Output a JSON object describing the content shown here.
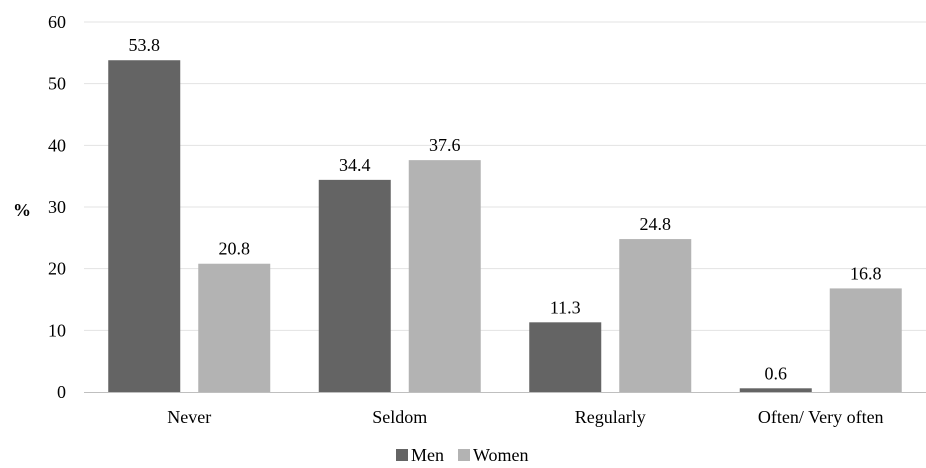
{
  "chart_data": {
    "type": "bar",
    "categories": [
      "Never",
      "Seldom",
      "Regularly",
      "Often/ Very often"
    ],
    "series": [
      {
        "name": "Men",
        "values": [
          53.8,
          34.4,
          11.3,
          0.6
        ],
        "color": "#646464"
      },
      {
        "name": "Women",
        "values": [
          20.8,
          37.6,
          24.8,
          16.8
        ],
        "color": "#b3b3b3"
      }
    ],
    "value_labels": [
      [
        "53.8",
        "34.4",
        "11.3",
        "0.6"
      ],
      [
        "20.8",
        "37.6",
        "24.8",
        "16.8"
      ]
    ],
    "ylabel": "%",
    "ylim": [
      0,
      60
    ],
    "yticks": [
      0,
      10,
      20,
      30,
      40,
      50,
      60
    ],
    "grid": true,
    "legend": "bottom-center"
  }
}
